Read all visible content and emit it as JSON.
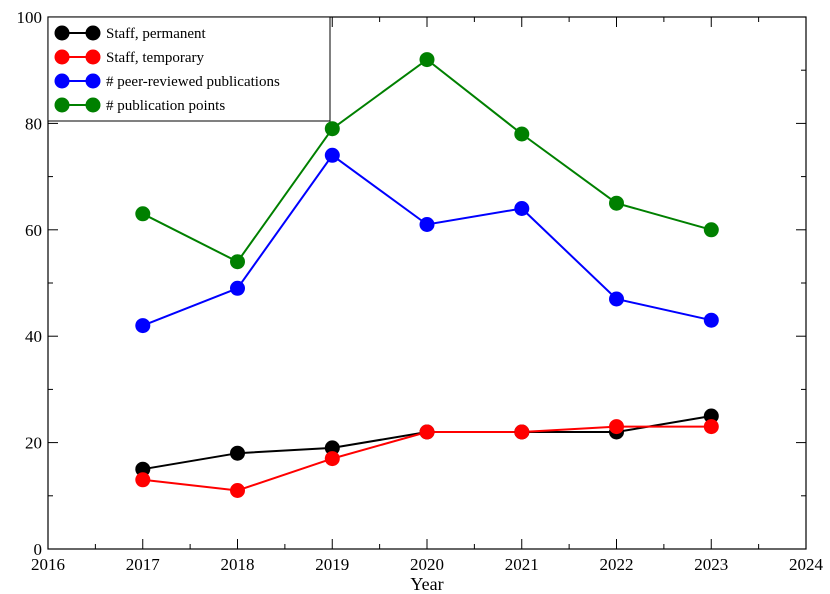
{
  "chart_data": {
    "type": "line",
    "title": "",
    "xlabel": "Year",
    "ylabel": "",
    "xlim": [
      2016,
      2024
    ],
    "ylim": [
      0,
      100
    ],
    "x_ticks": [
      2016,
      2017,
      2018,
      2019,
      2020,
      2021,
      2022,
      2023,
      2024
    ],
    "y_ticks": [
      0,
      20,
      40,
      60,
      80,
      100
    ],
    "grid": false,
    "legend_position": "top-left",
    "x": [
      2017,
      2018,
      2019,
      2020,
      2021,
      2022,
      2023
    ],
    "series": [
      {
        "name": "Staff, permanent",
        "color": "#000000",
        "values": [
          15,
          18,
          19,
          22,
          22,
          22,
          25
        ]
      },
      {
        "name": "Staff, temporary",
        "color": "#ff0000",
        "values": [
          13,
          11,
          17,
          22,
          22,
          23,
          23
        ]
      },
      {
        "name": "# peer-reviewed publications",
        "color": "#0000ff",
        "values": [
          42,
          49,
          74,
          61,
          64,
          47,
          43
        ]
      },
      {
        "name": "# publication points",
        "color": "#008000",
        "values": [
          63,
          54,
          79,
          92,
          78,
          65,
          60
        ]
      }
    ]
  }
}
